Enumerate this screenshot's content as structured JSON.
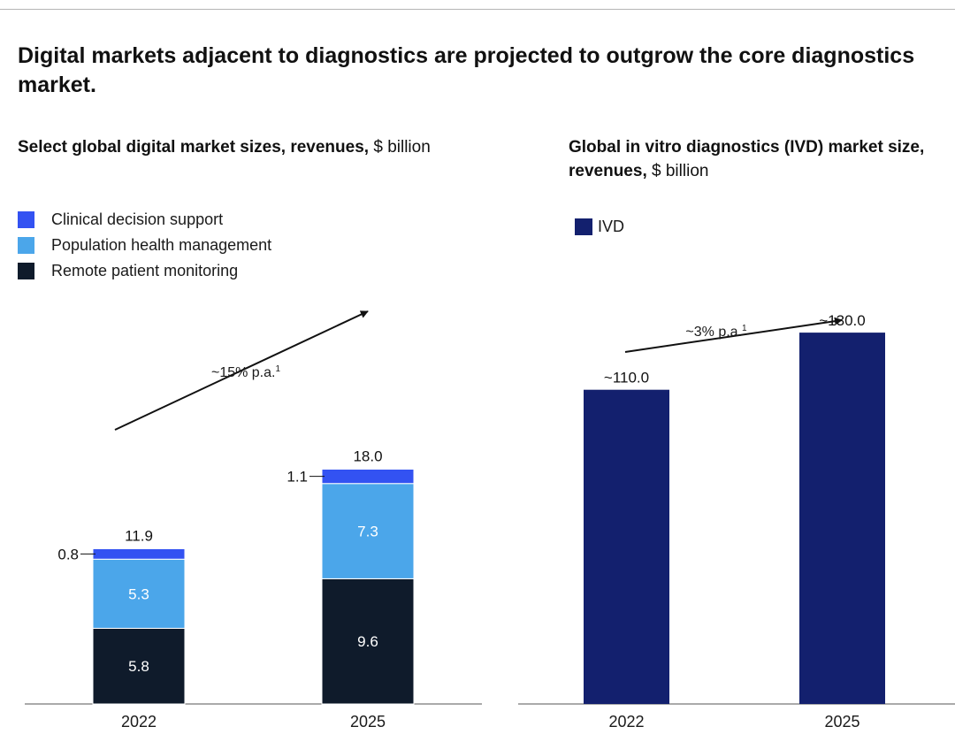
{
  "headline": "Digital markets adjacent to diagnostics are projected to outgrow the core diagnostics market.",
  "colors": {
    "clinical": "#3352f2",
    "population": "#4ba6ea",
    "remote": "#0f1b2b",
    "ivd": "#13206e",
    "axis": "#555555",
    "annotation": "#111111"
  },
  "chart_data": [
    {
      "type": "bar",
      "stacked": true,
      "title": "Select global digital market sizes, revenues,",
      "unit": "$ billion",
      "categories": [
        "2022",
        "2025"
      ],
      "series": [
        {
          "name": "Remote patient monitoring",
          "values": [
            5.8,
            9.6
          ]
        },
        {
          "name": "Population health management",
          "values": [
            5.3,
            7.3
          ]
        },
        {
          "name": "Clinical decision support",
          "values": [
            0.8,
            1.1
          ]
        }
      ],
      "totals": [
        "11.9",
        "18.0"
      ],
      "legend_order": [
        "Clinical decision support",
        "Population health management",
        "Remote patient monitoring"
      ],
      "legend_placement": "top-left",
      "annotation": {
        "text": "~15% p.a.",
        "footnote": "1"
      },
      "grid": false
    },
    {
      "type": "bar",
      "title": "Global in vitro diagnostics (IVD) market size, revenues,",
      "unit": "$ billion",
      "categories": [
        "2022",
        "2025"
      ],
      "series": [
        {
          "name": "IVD",
          "values": [
            110.0,
            130.0
          ]
        }
      ],
      "value_labels": [
        "~110.0",
        "~130.0"
      ],
      "legend_placement": "top-left",
      "annotation": {
        "text": "~3% p.a.",
        "footnote": "1"
      },
      "grid": false
    }
  ]
}
